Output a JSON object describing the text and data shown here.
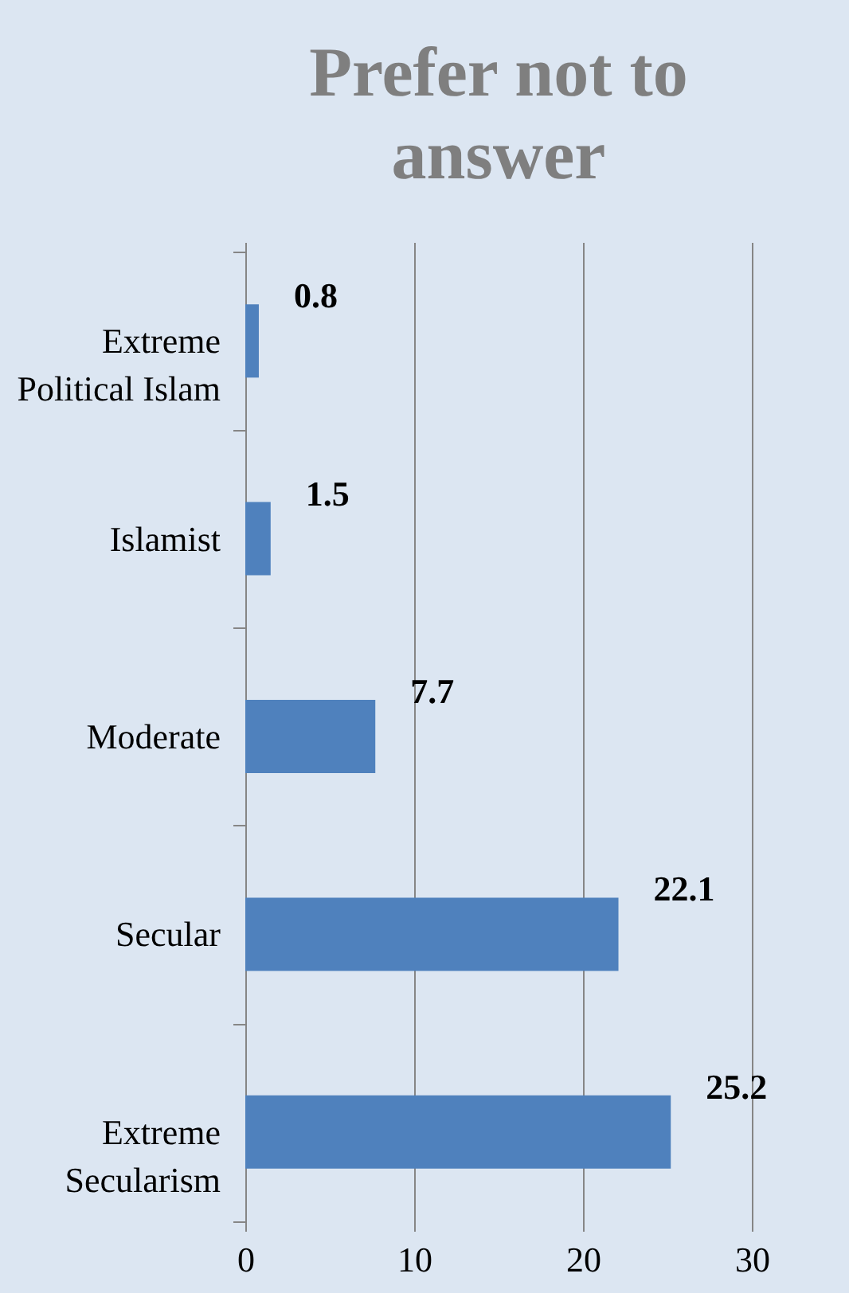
{
  "chart_data": {
    "type": "bar",
    "title": "Prefer not to answer",
    "orientation": "horizontal",
    "categories": [
      "Extreme Political Islam",
      "Islamist",
      "Moderate",
      "Secular",
      "Extreme Secularism"
    ],
    "values": [
      0.8,
      1.5,
      7.7,
      22.1,
      25.2
    ],
    "color": "#4f81bd",
    "xlim": [
      0,
      30
    ],
    "xticks": [
      0,
      10,
      20,
      30
    ],
    "grid": "x",
    "data_labels": true
  }
}
